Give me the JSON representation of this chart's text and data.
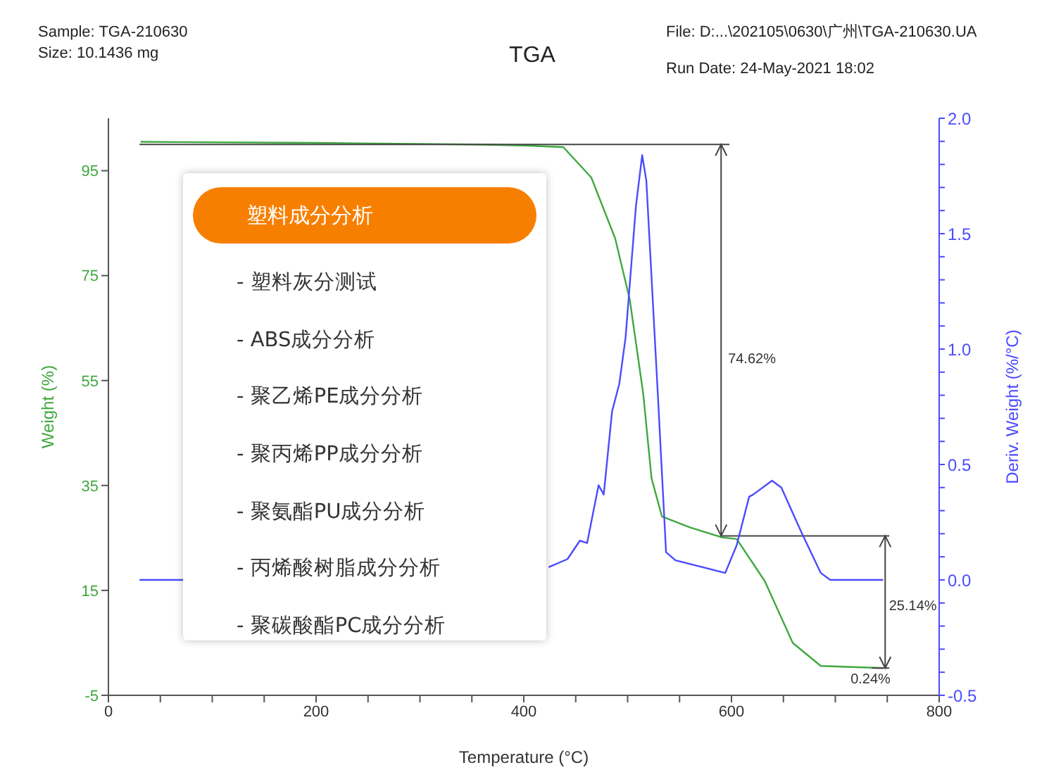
{
  "chart_data": {
    "type": "line",
    "title": "TGA",
    "xlabel": "Temperature (°C)",
    "ylabel": "Weight (%)",
    "y2label": "Deriv. Weight (%/°C)",
    "xlim": [
      0,
      800
    ],
    "xticks": [
      0,
      {
        "value": 50,
        "label": null
      },
      {
        "value": 100,
        "label": null
      },
      {
        "value": 150,
        "label": null
      },
      200,
      {
        "value": 250,
        "label": null
      },
      {
        "value": 300,
        "label": null
      },
      {
        "value": 350,
        "label": null
      },
      400,
      {
        "value": 450,
        "label": null
      },
      {
        "value": 500,
        "label": null
      },
      {
        "value": 550,
        "label": null
      },
      600,
      {
        "value": 650,
        "label": null
      },
      {
        "value": 700,
        "label": null
      },
      {
        "value": 750,
        "label": null
      },
      800
    ],
    "ylim": [
      -5,
      105
    ],
    "yticks": [
      -5,
      15,
      35,
      55,
      75,
      95
    ],
    "y2lim": [
      -0.5,
      2.0
    ],
    "y2ticks": [
      {
        "value": -0.5,
        "label": "-0.5"
      },
      {
        "value": -0.4,
        "label": null
      },
      {
        "value": -0.3,
        "label": null
      },
      {
        "value": -0.2,
        "label": null
      },
      {
        "value": -0.1,
        "label": null
      },
      {
        "value": 0,
        "label": "0.0"
      },
      {
        "value": 0.1,
        "label": null
      },
      {
        "value": 0.2,
        "label": null
      },
      {
        "value": 0.3,
        "label": null
      },
      {
        "value": 0.4,
        "label": null
      },
      {
        "value": 0.5,
        "label": "0.5"
      },
      {
        "value": 0.6,
        "label": null
      },
      {
        "value": 0.7,
        "label": null
      },
      {
        "value": 0.8,
        "label": null
      },
      {
        "value": 0.9,
        "label": null
      },
      {
        "value": 1.0,
        "label": "1.0"
      },
      {
        "value": 1.1,
        "label": null
      },
      {
        "value": 1.2,
        "label": null
      },
      {
        "value": 1.3,
        "label": null
      },
      {
        "value": 1.4,
        "label": null
      },
      {
        "value": 1.5,
        "label": "1.5"
      },
      {
        "value": 1.6,
        "label": null
      },
      {
        "value": 1.7,
        "label": null
      },
      {
        "value": 1.8,
        "label": null
      },
      {
        "value": 1.9,
        "label": null
      },
      {
        "value": 2.0,
        "label": "2.0"
      }
    ],
    "marker": "none",
    "line_style": "solid",
    "series": [
      {
        "color": "#3fa83f",
        "x": [
          31,
          200,
          350,
          400,
          438,
          465,
          488,
          502,
          515,
          523,
          533,
          560,
          591,
          605,
          632,
          659,
          686,
          746
        ],
        "values": [
          100.5,
          100.3,
          100,
          99.8,
          99.5,
          93.7,
          82.1,
          70.5,
          52.5,
          36.4,
          29.1,
          27,
          25.1,
          24.8,
          16.8,
          5,
          0.6,
          0.2
        ]
      },
      {
        "type": "line",
        "color": "#444444",
        "x": [
          30,
          598
        ],
        "values": [
          100,
          100
        ]
      },
      {
        "type": "line",
        "color": "#444444",
        "x": [
          590,
          590
        ],
        "values": [
          100,
          25.4
        ]
      },
      {
        "type": "line",
        "color": "#444444",
        "x": [
          590,
          752
        ],
        "values": [
          25.4,
          25.4
        ]
      },
      {
        "type": "line",
        "color": "#444444",
        "x": [
          748,
          748
        ],
        "values": [
          25.4,
          0.2
        ]
      },
      {
        "type": "line",
        "color": "#444444",
        "x": [
          735,
          752
        ],
        "values": [
          0.2,
          0.2
        ]
      },
      {
        "color": "#4b4bff",
        "axis": "y2",
        "x": [
          30,
          72,
          250,
          424,
          442,
          454,
          461,
          472,
          477,
          485,
          492,
          498,
          508,
          514,
          518,
          529,
          537,
          546,
          594,
          605,
          617,
          621,
          639,
          648,
          668,
          686,
          695,
          746
        ],
        "values": [
          0.0,
          0.0,
          null,
          0.055,
          0.09,
          0.17,
          0.16,
          0.41,
          0.37,
          0.73,
          0.85,
          1.05,
          1.62,
          1.84,
          1.73,
          0.81,
          0.12,
          0.085,
          0.03,
          0.15,
          0.36,
          0.37,
          0.43,
          0.4,
          0.2,
          0.03,
          0.0,
          0.0
        ]
      }
    ],
    "annotations": [
      "Sample: TGA-210630",
      "Size:  10.1436 mg",
      "File: D:...\\202105\\0630\\广州\\TGA-210630.UA",
      "Run Date: 24-May-2021 18:02",
      "74.62%",
      "25.14%",
      "0.24%",
      "塑料成分分析",
      "- 塑料灰分测试",
      "- ABS成分分析",
      "- 聚乙烯PE成分分析",
      "- 聚丙烯PP成分分析",
      "- 聚氨酯PU成分分析",
      "- 丙烯酸树脂成分分析",
      "- 聚碳酸酯PC成分分析"
    ]
  }
}
